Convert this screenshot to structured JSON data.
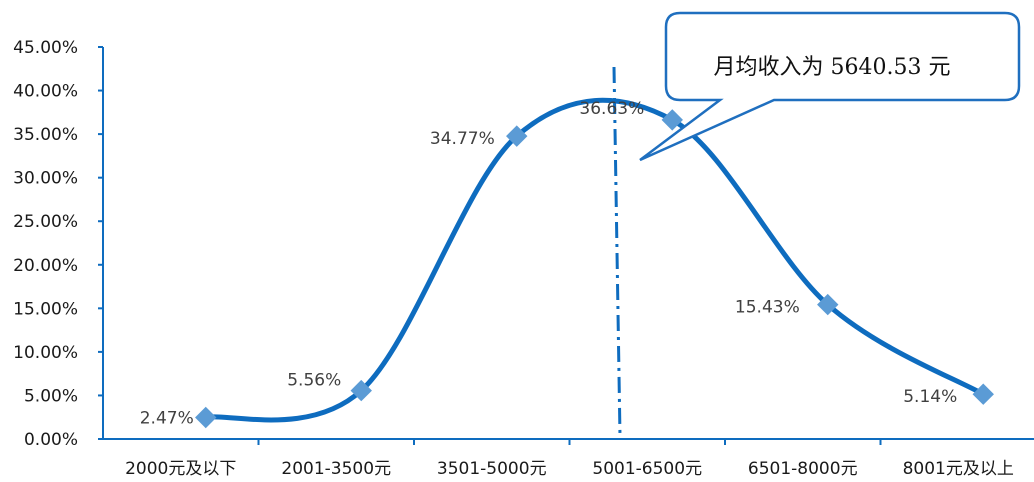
{
  "chart_data": {
    "type": "line",
    "smooth": true,
    "categories": [
      "2000元及以下",
      "2001-3500元",
      "3501-5000元",
      "5001-6500元",
      "6501-8000元",
      "8001元及以上"
    ],
    "series": [
      {
        "values": [
          2.47,
          5.56,
          34.77,
          36.63,
          15.43,
          5.14
        ],
        "data_labels": [
          "2.47%",
          "5.56%",
          "34.77%",
          "36.63%",
          "15.43%",
          "5.14%"
        ],
        "marker": "diamond"
      }
    ],
    "y_ticks": [
      "0.00%",
      "5.00%",
      "10.00%",
      "15.00%",
      "20.00%",
      "25.00%",
      "30.00%",
      "35.00%",
      "40.00%",
      "45.00%"
    ],
    "ylim": [
      0,
      45
    ],
    "grid": false,
    "annotation": {
      "text": "月均收入为 5640.53 元",
      "x_value": 5640.53,
      "style": "dash-dot vertical line with callout"
    },
    "colors": {
      "line": "#0E6CBF",
      "marker": "#5B9BD5",
      "axis": "#0E6CBF",
      "callout_border": "#1F6FBF"
    }
  }
}
